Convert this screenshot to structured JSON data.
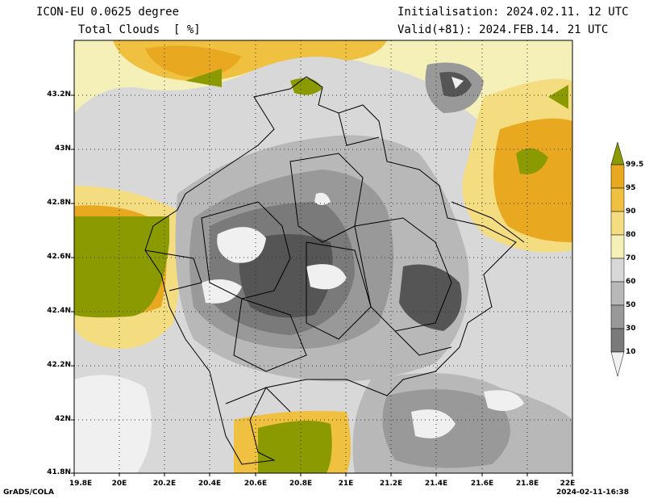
{
  "header": {
    "model": "ICON-EU 0.0625 degree",
    "field": "Total Clouds  [ %]",
    "init": "Initialisation: 2024.02.11. 12 UTC",
    "valid": "Valid(+81): 2024.FEB.14. 21 UTC"
  },
  "axes": {
    "lat_labels": [
      "43.2N",
      "43N",
      "42.8N",
      "42.6N",
      "42.4N",
      "42.2N",
      "42N",
      "41.8N"
    ],
    "lon_labels": [
      "19.8E",
      "20E",
      "20.2E",
      "20.4E",
      "20.6E",
      "20.8E",
      "21E",
      "21.2E",
      "21.4E",
      "21.6E",
      "21.8E",
      "22E"
    ]
  },
  "colorbar": {
    "labels": [
      "99.5",
      "95",
      "90",
      "80",
      "70",
      "60",
      "50",
      "30",
      "10"
    ],
    "colors": [
      "#8a9a00",
      "#e8a820",
      "#f0c040",
      "#f4dc80",
      "#f4f0b8",
      "#d8d8d8",
      "#b8b8b8",
      "#999999",
      "#7a7a7a",
      "#555555",
      "#f0f0f0"
    ]
  },
  "footer": {
    "left": "GrADS/COLA",
    "right": "2024-02-11-16:38"
  }
}
